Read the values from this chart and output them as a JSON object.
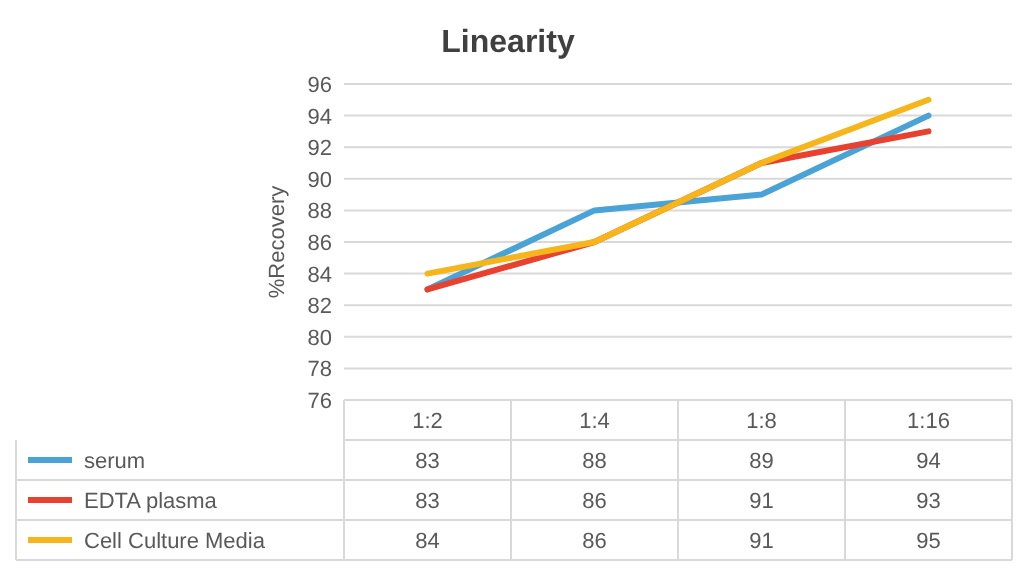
{
  "chart_data": {
    "type": "line",
    "title": "Linearity",
    "ylabel": "%Recovery",
    "categories": [
      "1:2",
      "1:4",
      "1:8",
      "1:16"
    ],
    "series": [
      {
        "name": "serum",
        "color": "#4aa3d6",
        "values": [
          83,
          88,
          89,
          94
        ]
      },
      {
        "name": "EDTA plasma",
        "color": "#e8412f",
        "values": [
          83,
          86,
          91,
          93
        ]
      },
      {
        "name": "Cell Culture Media",
        "color": "#f7b51c",
        "values": [
          84,
          86,
          91,
          95
        ]
      }
    ],
    "ylim": [
      76,
      96
    ],
    "yticks": [
      76,
      78,
      80,
      82,
      84,
      86,
      88,
      90,
      92,
      94,
      96
    ],
    "grid": "y",
    "legend": "bottom",
    "data_labels": true,
    "marker": "none",
    "line_style": "solid"
  }
}
